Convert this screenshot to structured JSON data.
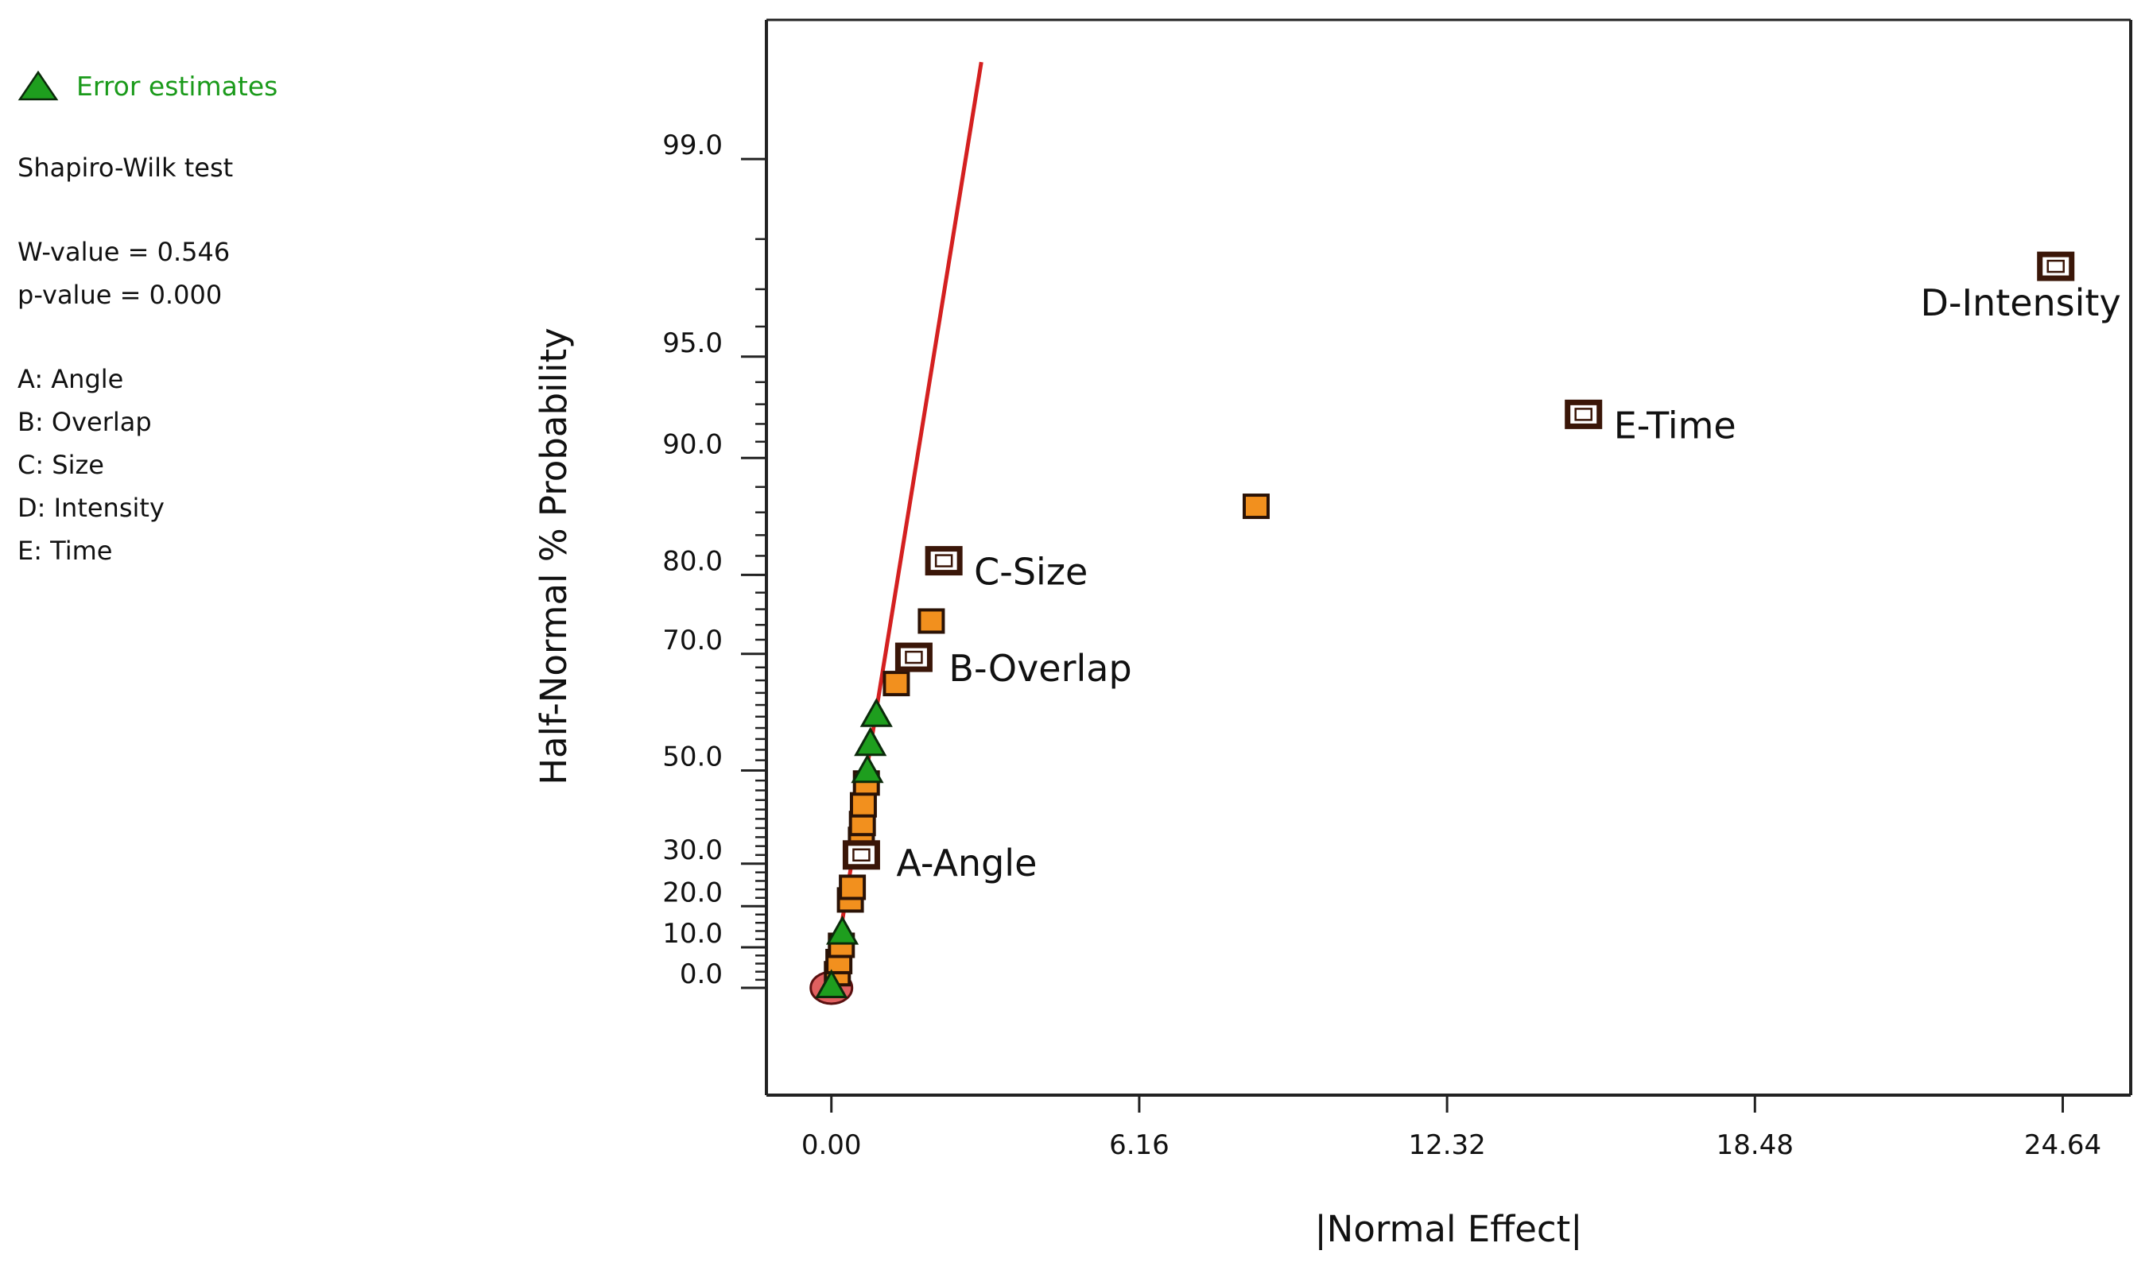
{
  "legend": {
    "error_estimates": "Error estimates",
    "test_name": "Shapiro-Wilk test",
    "w_value": "W-value = 0.546",
    "p_value": "p-value = 0.000",
    "factors": [
      "A: Angle",
      "B: Overlap",
      "C: Size",
      "D: Intensity",
      "E: Time"
    ]
  },
  "colors": {
    "error_estimate": "#1e9e1e",
    "error_text": "#1a9a1a",
    "effect_fill": "#f2901e",
    "named_effect_outline": "#3a1608",
    "fit_line": "#d42020",
    "origin_marker": "#e06060"
  },
  "chart_data": {
    "type": "scatter",
    "xlabel": "|Normal Effect|",
    "ylabel": "Half-Normal % Probability",
    "x_ticks": [
      "0.00",
      "6.16",
      "12.32",
      "18.48",
      "24.64"
    ],
    "y_ticks": [
      "0.0",
      "10.0",
      "20.0",
      "30.0",
      "50.0",
      "70.0",
      "80.0",
      "90.0",
      "95.0",
      "99.0"
    ],
    "xlim": [
      -1.3,
      26.0
    ],
    "y_scale": "half-normal probability",
    "fit_line": {
      "x": [
        0.0,
        3.0
      ],
      "y": [
        0.0,
        99.6
      ]
    },
    "series": [
      {
        "name": "Error estimates",
        "marker": "triangle",
        "points": [
          [
            0.0,
            0.3
          ],
          [
            0.22,
            13.5
          ],
          [
            0.72,
            49.8
          ],
          [
            0.78,
            55.0
          ],
          [
            0.9,
            60.2
          ]
        ]
      },
      {
        "marker": "square",
        "points": [
          [
            0.12,
            3.5
          ],
          [
            0.15,
            6.5
          ],
          [
            0.2,
            10.5
          ],
          [
            0.38,
            21.5
          ],
          [
            0.42,
            24.5
          ],
          [
            0.6,
            35.5
          ],
          [
            0.62,
            39.0
          ],
          [
            0.64,
            43.0
          ],
          [
            0.7,
            47.5
          ],
          [
            1.3,
            65.5
          ],
          [
            2.0,
            74.5
          ],
          [
            8.5,
            86.5
          ]
        ]
      },
      {
        "marker": "square-open",
        "points": [
          [
            0.6,
            32.0,
            "A-Angle"
          ],
          [
            1.65,
            69.5,
            "B-Overlap"
          ],
          [
            2.25,
            81.5,
            "C-Size"
          ],
          [
            24.5,
            97.5,
            "D-Intensity"
          ],
          [
            15.05,
            92.5,
            "E-Time"
          ]
        ]
      }
    ]
  }
}
